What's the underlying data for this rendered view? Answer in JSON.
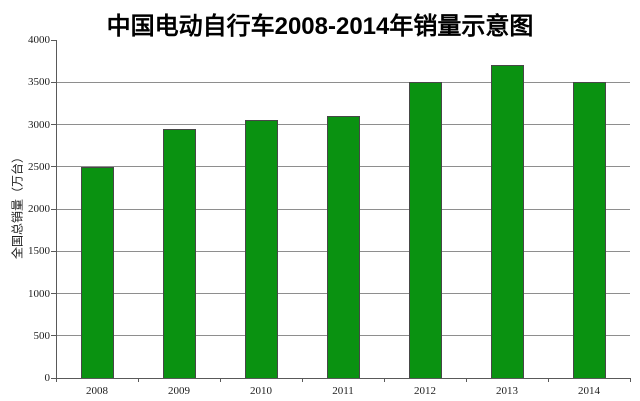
{
  "chart_data": {
    "type": "bar",
    "title": "中国电动自行车2008-2014年销量示意图",
    "categories": [
      "2008",
      "2009",
      "2010",
      "2011",
      "2012",
      "2013",
      "2014"
    ],
    "values": [
      2500,
      2950,
      3050,
      3100,
      3500,
      3700,
      3500
    ],
    "xlabel": "",
    "ylabel": "全国总销量（万台）",
    "ylim": [
      0,
      4000
    ],
    "yticks": [
      0,
      500,
      1000,
      1500,
      2000,
      2500,
      3000,
      3500,
      4000
    ],
    "grid": true,
    "legend": false,
    "colors": {
      "bar_fill": "#0a9211",
      "bar_border": "#474747",
      "gridline": "#8e8e8e",
      "axis": "#595959",
      "text": "#1c1c1c",
      "background": "#ffffff"
    }
  }
}
